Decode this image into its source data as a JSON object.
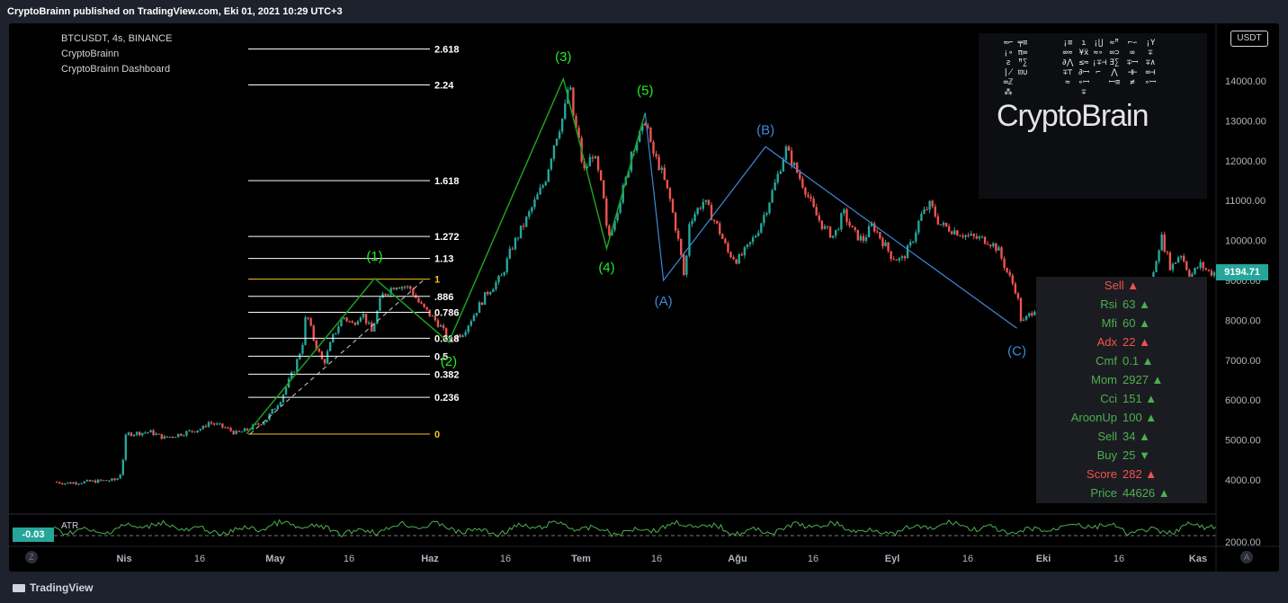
{
  "header": {
    "publish_line": "CryptoBrainn published on TradingView.com, Eki 01, 2021 10:29 UTC+3"
  },
  "legend": {
    "symbol": "BTCUSDT, 4s, BINANCE",
    "indicator1": "CryptoBrainn",
    "indicator2": "CryptoBrainn Dashboard"
  },
  "currency_button": "USDT",
  "footer": {
    "brand": "TradingView"
  },
  "colors": {
    "up": "#26a69a",
    "down": "#ef5350",
    "wave_green": "#1e9f1e",
    "label_green": "#22ee22",
    "abc_blue": "#3d8ad6",
    "fib_white": "#ffffff",
    "fib_yellow": "#f5c518",
    "atr_green": "#4caf50"
  },
  "watermark": {
    "text": "CryptoBrain"
  },
  "corner_buttons": {
    "left": "Z",
    "right": "A"
  },
  "chart_data": {
    "type": "candlestick",
    "price_axis": {
      "ticks": [
        "14000.00",
        "13000.00",
        "12000.00",
        "11000.00",
        "10000.00",
        "9000.00",
        "8000.00",
        "7000.00",
        "6000.00",
        "5000.00",
        "4000.00"
      ],
      "ylim": [
        3600,
        15000
      ]
    },
    "time_axis": {
      "ticks": [
        "Nis",
        "16",
        "May",
        "16",
        "Haz",
        "16",
        "Tem",
        "16",
        "Ağu",
        "16",
        "Eyl",
        "16",
        "Eki",
        "16",
        "Kas"
      ]
    },
    "last_price": "9194.71",
    "price_path": [
      [
        0,
        3950
      ],
      [
        0.012,
        3920
      ],
      [
        0.04,
        3960
      ],
      [
        0.065,
        4000
      ],
      [
        0.07,
        4200
      ],
      [
        0.075,
        5150
      ],
      [
        0.1,
        5200
      ],
      [
        0.115,
        5050
      ],
      [
        0.155,
        5300
      ],
      [
        0.16,
        5450
      ],
      [
        0.178,
        5300
      ],
      [
        0.19,
        5160
      ],
      [
        0.2,
        5250
      ],
      [
        0.22,
        5500
      ],
      [
        0.235,
        6000
      ],
      [
        0.25,
        6800
      ],
      [
        0.258,
        7400
      ],
      [
        0.262,
        8200
      ],
      [
        0.27,
        7500
      ],
      [
        0.28,
        6900
      ],
      [
        0.29,
        7600
      ],
      [
        0.3,
        8100
      ],
      [
        0.31,
        7900
      ],
      [
        0.32,
        8200
      ],
      [
        0.33,
        7700
      ],
      [
        0.34,
        8600
      ],
      [
        0.355,
        8900
      ],
      [
        0.37,
        8800
      ],
      [
        0.38,
        8400
      ],
      [
        0.4,
        7900
      ],
      [
        0.41,
        7500
      ],
      [
        0.425,
        7700
      ],
      [
        0.44,
        8300
      ],
      [
        0.45,
        8700
      ],
      [
        0.465,
        9100
      ],
      [
        0.475,
        9800
      ],
      [
        0.49,
        10500
      ],
      [
        0.5,
        11000
      ],
      [
        0.51,
        11500
      ],
      [
        0.52,
        12500
      ],
      [
        0.53,
        13200
      ],
      [
        0.535,
        14000
      ],
      [
        0.54,
        13000
      ],
      [
        0.545,
        12500
      ],
      [
        0.55,
        11700
      ],
      [
        0.56,
        12200
      ],
      [
        0.57,
        11200
      ],
      [
        0.575,
        10000
      ],
      [
        0.585,
        10800
      ],
      [
        0.595,
        11600
      ],
      [
        0.6,
        12300
      ],
      [
        0.61,
        12700
      ],
      [
        0.615,
        13100
      ],
      [
        0.62,
        12300
      ],
      [
        0.63,
        11800
      ],
      [
        0.64,
        11000
      ],
      [
        0.65,
        9800
      ],
      [
        0.655,
        9000
      ],
      [
        0.66,
        10500
      ],
      [
        0.675,
        11000
      ],
      [
        0.69,
        10300
      ],
      [
        0.7,
        9700
      ],
      [
        0.71,
        9500
      ],
      [
        0.72,
        9800
      ],
      [
        0.73,
        10200
      ],
      [
        0.74,
        10800
      ],
      [
        0.75,
        11500
      ],
      [
        0.76,
        12300
      ],
      [
        0.77,
        11800
      ],
      [
        0.78,
        11300
      ],
      [
        0.79,
        10700
      ],
      [
        0.8,
        10300
      ],
      [
        0.81,
        10100
      ],
      [
        0.82,
        10700
      ],
      [
        0.83,
        10200
      ],
      [
        0.84,
        10000
      ],
      [
        0.85,
        10400
      ],
      [
        0.86,
        10000
      ],
      [
        0.87,
        9600
      ],
      [
        0.88,
        9500
      ],
      [
        0.89,
        9900
      ],
      [
        0.9,
        10600
      ],
      [
        0.91,
        10900
      ],
      [
        0.92,
        10400
      ],
      [
        0.93,
        10300
      ],
      [
        0.94,
        10200
      ],
      [
        0.95,
        10100
      ],
      [
        0.96,
        10050
      ],
      [
        0.97,
        10000
      ],
      [
        0.98,
        9800
      ],
      [
        0.99,
        9200
      ],
      [
        1.0,
        8700
      ],
      [
        1.005,
        7900
      ],
      [
        1.015,
        8200
      ],
      [
        1.025,
        8500
      ],
      [
        1.035,
        8100
      ],
      [
        1.045,
        8300
      ],
      [
        1.055,
        8600
      ],
      [
        1.065,
        8400
      ],
      [
        1.075,
        8200
      ],
      [
        1.085,
        8300
      ],
      [
        1.095,
        8500
      ],
      [
        1.105,
        8000
      ],
      [
        1.115,
        7700
      ],
      [
        1.12,
        7500
      ],
      [
        1.13,
        7400
      ],
      [
        1.14,
        8900
      ],
      [
        1.145,
        9600
      ],
      [
        1.15,
        10100
      ],
      [
        1.16,
        9300
      ],
      [
        1.17,
        9700
      ],
      [
        1.18,
        9100
      ],
      [
        1.19,
        9400
      ],
      [
        1.2,
        9200
      ],
      [
        1.205,
        9194.71
      ]
    ],
    "fibonacci_levels": [
      {
        "label": "2.618",
        "value": 14800,
        "color": "white"
      },
      {
        "label": "2.24",
        "value": 13900,
        "color": "white"
      },
      {
        "label": "1.618",
        "value": 11500,
        "color": "white"
      },
      {
        "label": "1.272",
        "value": 10100,
        "color": "white"
      },
      {
        "label": "1.13",
        "value": 9550,
        "color": "white"
      },
      {
        "label": "1",
        "value": 9030,
        "color": "yellow"
      },
      {
        "label": ".886",
        "value": 8600,
        "color": "white"
      },
      {
        "label": "0.786",
        "value": 8200,
        "color": "white"
      },
      {
        "label": "0.618",
        "value": 7550,
        "color": "white"
      },
      {
        "label": "0.5",
        "value": 7100,
        "color": "white"
      },
      {
        "label": "0.382",
        "value": 6650,
        "color": "white"
      },
      {
        "label": "0.236",
        "value": 6070,
        "color": "white"
      },
      {
        "label": "0",
        "value": 5150,
        "color": "yellow"
      }
    ],
    "elliott_wave": [
      {
        "label": "(1)",
        "price": 9050
      },
      {
        "label": "(2)",
        "price": 7450
      },
      {
        "label": "(3)",
        "price": 14050
      },
      {
        "label": "(4)",
        "price": 9800
      },
      {
        "label": "(5)",
        "price": 13200
      }
    ],
    "corrective_wave": [
      {
        "label": "(A)",
        "price": 9000
      },
      {
        "label": "(B)",
        "price": 12350
      },
      {
        "label": "(C)",
        "price": 7800
      }
    ],
    "atr": {
      "label": "ATR",
      "value": "-0.03"
    }
  },
  "dashboard": {
    "signal": "Sell",
    "rows": [
      {
        "name": "Rsi",
        "value": "63",
        "color": "#4caf50",
        "arrow": "up"
      },
      {
        "name": "Mfi",
        "value": "60",
        "color": "#4caf50",
        "arrow": "up"
      },
      {
        "name": "Adx",
        "value": "22",
        "color": "#ef5350",
        "arrow": "up"
      },
      {
        "name": "Cmf",
        "value": "0.1",
        "color": "#4caf50",
        "arrow": "up"
      },
      {
        "name": "Mom",
        "value": "2927",
        "color": "#4caf50",
        "arrow": "up"
      },
      {
        "name": "Cci",
        "value": "151",
        "color": "#4caf50",
        "arrow": "up"
      },
      {
        "name": "AroonUp",
        "value": "100",
        "color": "#4caf50",
        "arrow": "up"
      },
      {
        "name": "Sell",
        "value": "34",
        "color": "#4caf50",
        "arrow": "up"
      },
      {
        "name": "Buy",
        "value": "25",
        "color": "#4caf50",
        "arrow": "down"
      },
      {
        "name": "Score",
        "value": "282",
        "color": "#ef5350",
        "arrow": "up"
      },
      {
        "name": "Price",
        "value": "44626",
        "color": "#4caf50",
        "arrow": "up"
      }
    ]
  }
}
